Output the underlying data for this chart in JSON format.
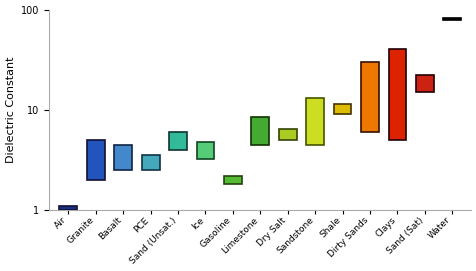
{
  "materials": [
    "Air",
    "Granite",
    "Basalt",
    "PCE",
    "Sand (Unsat.)",
    "Ice",
    "Gasoline",
    "Limestone",
    "Dry Salt",
    "Sandstone",
    "Shale",
    "Dirty Sands",
    "Clays",
    "Sand (Sat)",
    "Water"
  ],
  "y_min": [
    1.0,
    2.0,
    2.5,
    2.5,
    4.0,
    3.2,
    1.8,
    4.5,
    5.0,
    4.5,
    9.0,
    6.0,
    5.0,
    15.0,
    80.0
  ],
  "y_max": [
    1.1,
    5.0,
    4.5,
    3.5,
    6.0,
    4.8,
    2.2,
    8.5,
    6.5,
    13.0,
    11.5,
    30.0,
    40.0,
    22.0,
    83.0
  ],
  "colors": [
    "#1a3080",
    "#2255bb",
    "#4488cc",
    "#44aabb",
    "#33bb99",
    "#55cc77",
    "#55bb33",
    "#44aa33",
    "#aacc22",
    "#ccdd22",
    "#ddbb00",
    "#ee7700",
    "#dd2200",
    "#cc2211",
    "#111111"
  ],
  "edgecolors": [
    "#111133",
    "#111133",
    "#112244",
    "#113344",
    "#113333",
    "#114422",
    "#224411",
    "#113300",
    "#334400",
    "#445500",
    "#443300",
    "#331100",
    "#220000",
    "#220000",
    "#000000"
  ],
  "ylabel": "Dielectric Constant",
  "ylim_min": 1.0,
  "ylim_max": 100,
  "bar_width": 0.65,
  "fig_width": 4.77,
  "fig_height": 2.71,
  "dpi": 100,
  "tick_fontsize": 6.5,
  "ylabel_fontsize": 8,
  "water_bar_height": 0.08,
  "yticks": [
    1,
    10,
    100
  ]
}
